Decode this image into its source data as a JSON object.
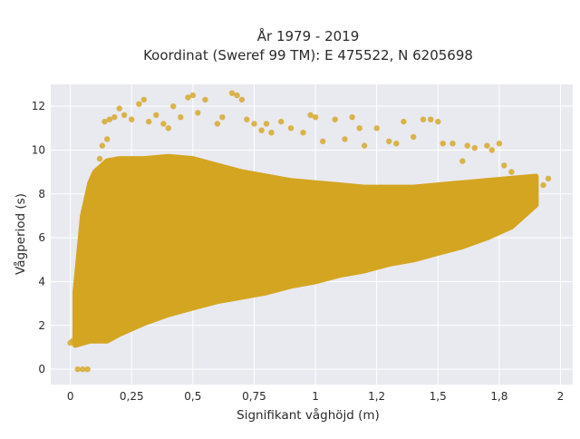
{
  "chart_data": {
    "type": "scatter",
    "title": "År 1979 - 2019",
    "subtitle": "Koordinat (Sweref 99 TM): E 475522, N 6205698",
    "xlabel": "Signifikant våghöjd (m)",
    "ylabel": "Vågperiod (s)",
    "xlim": [
      -0.08,
      2.05
    ],
    "ylim": [
      -0.7,
      13.0
    ],
    "x_ticks": [
      {
        "value": 0,
        "label": "0"
      },
      {
        "value": 0.25,
        "label": "0,25"
      },
      {
        "value": 0.5,
        "label": "0,5"
      },
      {
        "value": 0.75,
        "label": "0,75"
      },
      {
        "value": 1.0,
        "label": "1"
      },
      {
        "value": 1.25,
        "label": "1,2"
      },
      {
        "value": 1.5,
        "label": "1,5"
      },
      {
        "value": 1.75,
        "label": "1,8"
      },
      {
        "value": 2.0,
        "label": "2"
      }
    ],
    "y_ticks": [
      {
        "value": 0,
        "label": "0"
      },
      {
        "value": 2,
        "label": "2"
      },
      {
        "value": 4,
        "label": "4"
      },
      {
        "value": 6,
        "label": "6"
      },
      {
        "value": 8,
        "label": "8"
      },
      {
        "value": 10,
        "label": "10"
      },
      {
        "value": 12,
        "label": "12"
      }
    ],
    "grid": true,
    "legend": "none",
    "marker_color": "#D4A520",
    "background_color": "#E9E9F0",
    "envelope": {
      "x": [
        0.02,
        0.05,
        0.08,
        0.1,
        0.15,
        0.2,
        0.3,
        0.4,
        0.5,
        0.6,
        0.7,
        0.8,
        0.9,
        1.0,
        1.1,
        1.2,
        1.3,
        1.4,
        1.5,
        1.6,
        1.7,
        1.8,
        1.9
      ],
      "y_min": [
        1.1,
        1.2,
        1.3,
        1.3,
        1.3,
        1.6,
        2.1,
        2.5,
        2.8,
        3.1,
        3.3,
        3.5,
        3.8,
        4.0,
        4.3,
        4.5,
        4.8,
        5.0,
        5.3,
        5.6,
        6.0,
        6.5,
        7.5
      ],
      "y_max": [
        3.5,
        7.0,
        8.5,
        9.0,
        9.5,
        9.6,
        9.6,
        9.7,
        9.6,
        9.3,
        9.0,
        8.8,
        8.6,
        8.5,
        8.4,
        8.3,
        8.3,
        8.3,
        8.4,
        8.5,
        8.6,
        8.7,
        8.8
      ]
    },
    "points": [
      [
        0.03,
        0.0
      ],
      [
        0.05,
        0.0
      ],
      [
        0.07,
        0.0
      ],
      [
        0.0,
        1.2
      ],
      [
        0.01,
        1.3
      ],
      [
        0.02,
        1.5
      ],
      [
        0.03,
        2.0
      ],
      [
        0.04,
        2.5
      ],
      [
        0.05,
        3.2
      ],
      [
        0.06,
        4.0
      ],
      [
        0.08,
        5.5
      ],
      [
        0.1,
        8.8
      ],
      [
        0.12,
        9.6
      ],
      [
        0.13,
        10.2
      ],
      [
        0.15,
        10.5
      ],
      [
        0.14,
        11.3
      ],
      [
        0.16,
        11.4
      ],
      [
        0.18,
        11.5
      ],
      [
        0.2,
        11.9
      ],
      [
        0.22,
        11.6
      ],
      [
        0.25,
        11.4
      ],
      [
        0.28,
        12.1
      ],
      [
        0.3,
        12.3
      ],
      [
        0.32,
        11.3
      ],
      [
        0.35,
        11.6
      ],
      [
        0.38,
        11.2
      ],
      [
        0.4,
        11.0
      ],
      [
        0.42,
        12.0
      ],
      [
        0.45,
        11.5
      ],
      [
        0.48,
        12.4
      ],
      [
        0.5,
        12.5
      ],
      [
        0.52,
        11.7
      ],
      [
        0.55,
        12.3
      ],
      [
        0.6,
        11.2
      ],
      [
        0.62,
        11.5
      ],
      [
        0.66,
        12.6
      ],
      [
        0.68,
        12.5
      ],
      [
        0.7,
        12.3
      ],
      [
        0.72,
        11.4
      ],
      [
        0.75,
        11.2
      ],
      [
        0.78,
        10.9
      ],
      [
        0.8,
        11.2
      ],
      [
        0.82,
        10.8
      ],
      [
        0.86,
        11.3
      ],
      [
        0.9,
        11.0
      ],
      [
        0.95,
        10.8
      ],
      [
        0.98,
        11.6
      ],
      [
        1.0,
        11.5
      ],
      [
        1.03,
        10.4
      ],
      [
        1.08,
        11.4
      ],
      [
        1.12,
        10.5
      ],
      [
        1.15,
        11.5
      ],
      [
        1.18,
        11.0
      ],
      [
        1.2,
        10.2
      ],
      [
        1.25,
        11.0
      ],
      [
        1.3,
        10.4
      ],
      [
        1.33,
        10.3
      ],
      [
        1.36,
        11.3
      ],
      [
        1.4,
        10.6
      ],
      [
        1.44,
        11.4
      ],
      [
        1.47,
        11.4
      ],
      [
        1.5,
        11.3
      ],
      [
        1.52,
        10.3
      ],
      [
        1.56,
        10.3
      ],
      [
        1.6,
        9.5
      ],
      [
        1.62,
        10.2
      ],
      [
        1.65,
        10.1
      ],
      [
        1.7,
        10.2
      ],
      [
        1.72,
        10.0
      ],
      [
        1.75,
        10.3
      ],
      [
        1.77,
        9.3
      ],
      [
        1.8,
        9.0
      ],
      [
        1.82,
        8.6
      ],
      [
        1.86,
        8.5
      ],
      [
        1.88,
        8.3
      ],
      [
        1.9,
        8.0
      ],
      [
        1.93,
        8.4
      ],
      [
        1.95,
        8.7
      ]
    ]
  }
}
